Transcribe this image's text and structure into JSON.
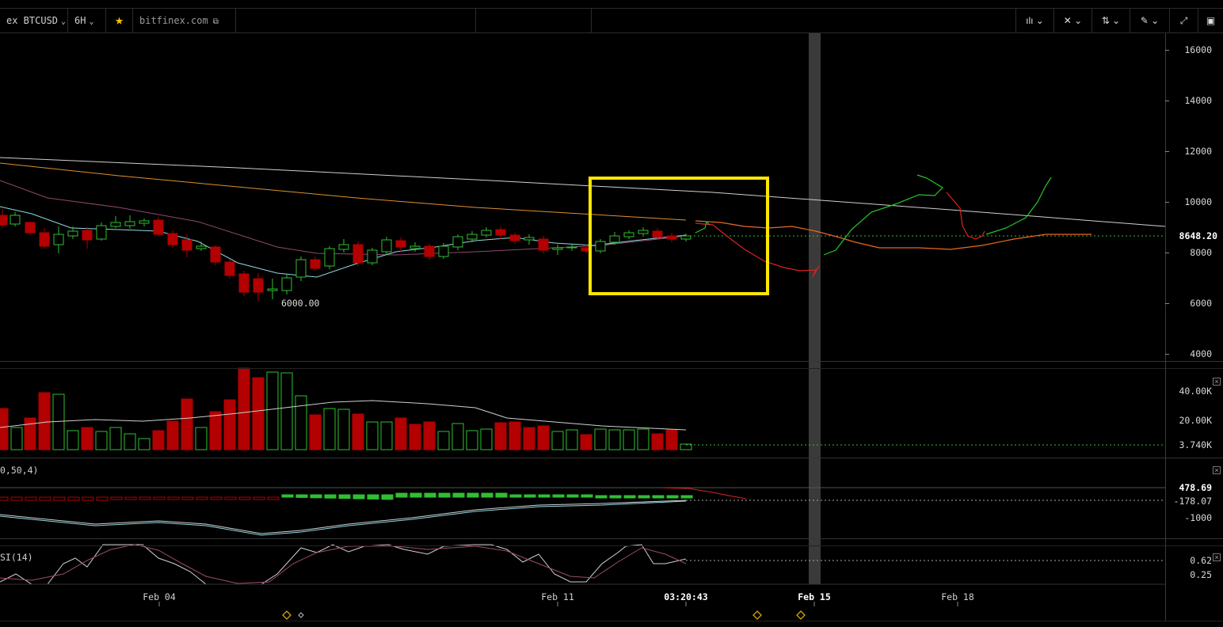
{
  "toolbar": {
    "symbol": "ex BTCUSD",
    "interval": "6H",
    "source": "bitfinex.com",
    "icons": [
      "bar-style-icon",
      "indicators-icon",
      "compare-icon",
      "draw-icon",
      "fullscreen-icon",
      "chart-icon"
    ]
  },
  "main_pane": {
    "price_axis": [
      "16000",
      "14000",
      "12000",
      "10000",
      "8000",
      "6000",
      "4000"
    ],
    "last_price": "8648.20",
    "low_annotation": "6000.00"
  },
  "volume_pane": {
    "axis": [
      "40.00K",
      "20.00K",
      "3.740K"
    ]
  },
  "macd_pane": {
    "title": "0,50,4)",
    "axis": [
      "478.69",
      "-178.07",
      "-1000"
    ]
  },
  "rsi_pane": {
    "title": "SI(14)",
    "axis": [
      "0.62",
      "0.25"
    ]
  },
  "time_axis": {
    "labels": [
      "Feb 04",
      "Feb 11",
      "03:20:43",
      "Feb 15",
      "Feb 18"
    ]
  },
  "colors": {
    "up": "#2fbf2f",
    "down": "#b30000",
    "highlight_box": "#ffe600",
    "vertical_band": "#3a3a3a"
  }
}
